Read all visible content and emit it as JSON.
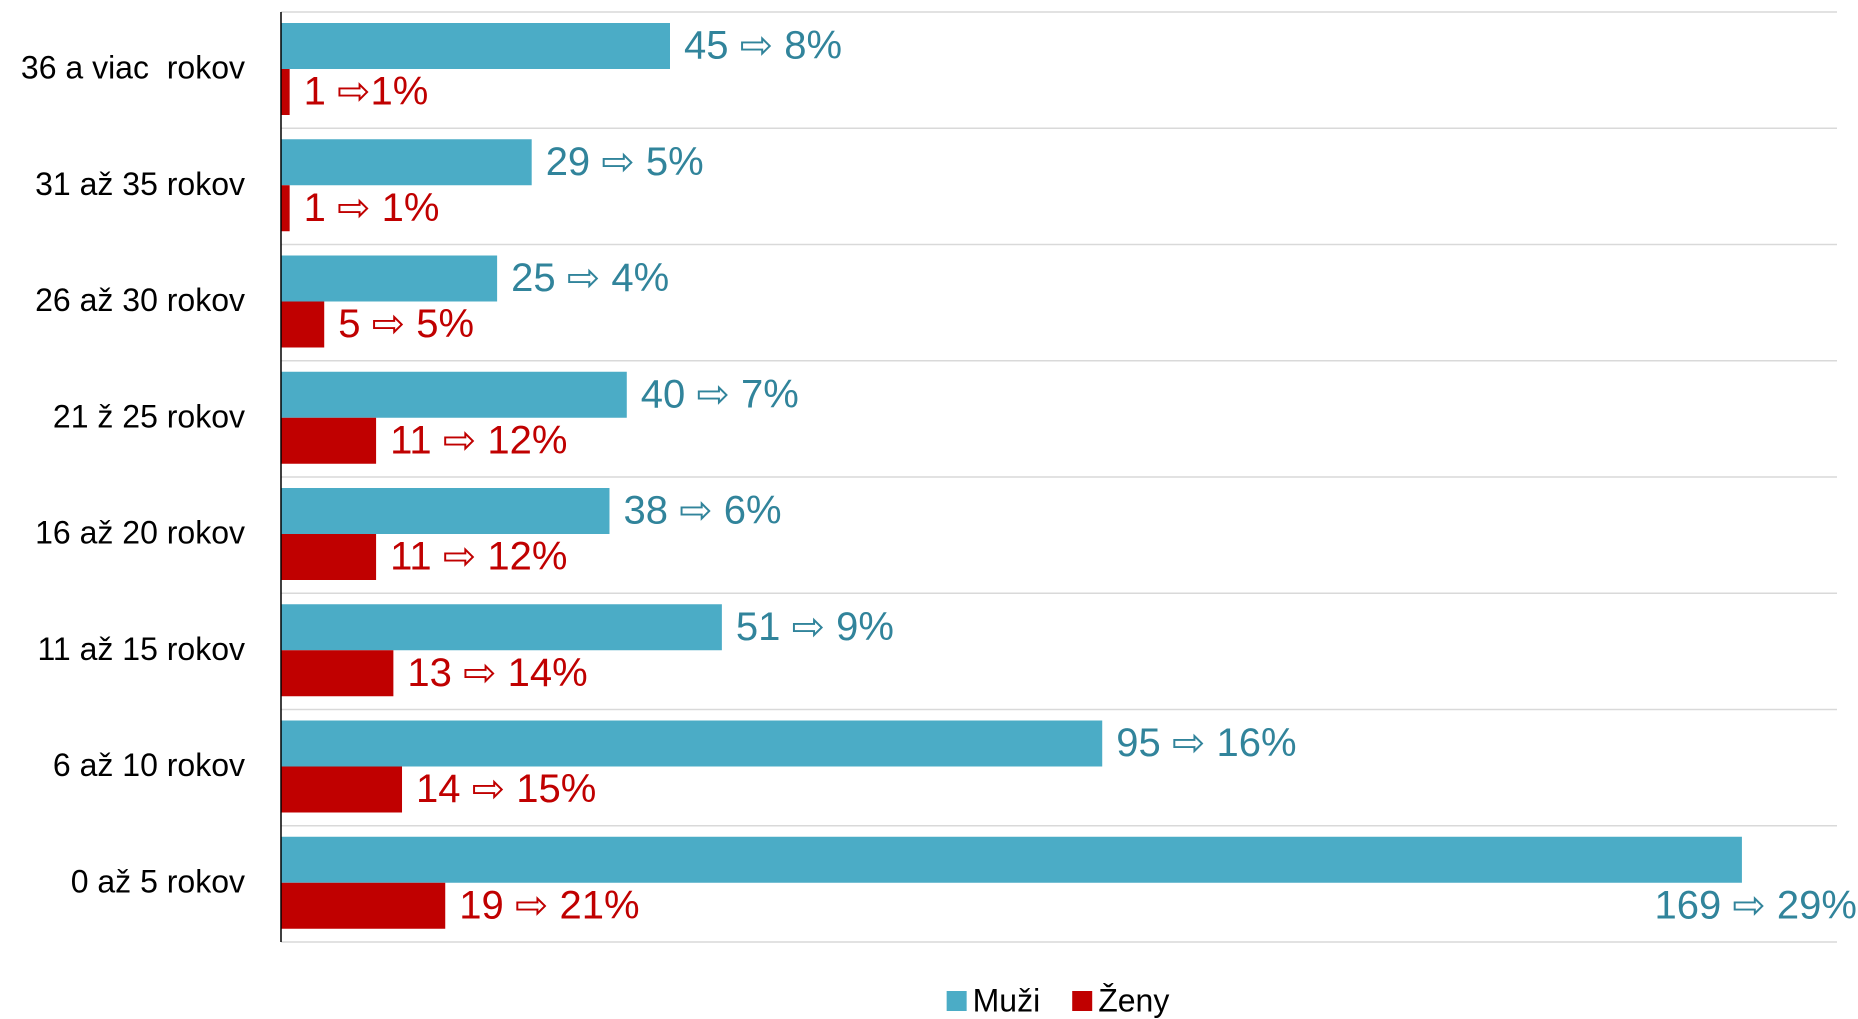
{
  "chart_data": {
    "type": "hbar",
    "categories": [
      "36 a viac  rokov",
      "31 až 35 rokov",
      "26 až 30 rokov",
      "21 ž 25 rokov",
      "16 až 20 rokov",
      "11 až 15 rokov",
      "6 až 10 rokov",
      "0 až 5 rokov"
    ],
    "series": [
      {
        "name": "Muži",
        "color": "#4bacc6",
        "label_color": "#31849b",
        "values": [
          45,
          29,
          25,
          40,
          38,
          51,
          95,
          169
        ],
        "value_labels": [
          "45 ⇨ 8%",
          "29 ⇨ 5%",
          "25 ⇨ 4%",
          "40 ⇨ 7%",
          "38 ⇨ 6%",
          "51 ⇨ 9%",
          "95 ⇨ 16%",
          "169 ⇨ 29%"
        ]
      },
      {
        "name": "Ženy",
        "color": "#c00000",
        "label_color": "#c00000",
        "values": [
          1,
          1,
          5,
          11,
          11,
          13,
          14,
          19
        ],
        "value_labels": [
          "1 ⇨1%",
          "1 ⇨ 1%",
          "5 ⇨ 5%",
          "11 ⇨ 12%",
          "11 ⇨ 12%",
          "13 ⇨ 14%",
          "14 ⇨ 15%",
          "19 ⇨ 21%"
        ]
      }
    ],
    "xlim": [
      0,
      180
    ],
    "legend": "bottom"
  }
}
